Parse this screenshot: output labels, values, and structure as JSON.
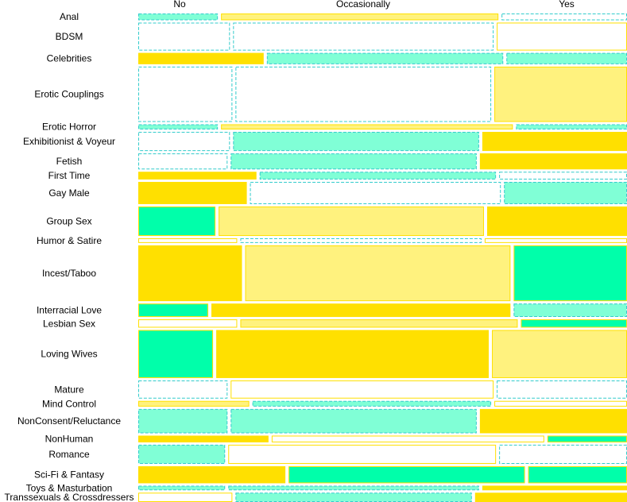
{
  "chart_data": {
    "type": "mosaic",
    "columns": [
      "No",
      "Occasionally",
      "Yes"
    ],
    "colors": {
      "yellow": "#ffe000",
      "light_yellow": "#fff27e",
      "green": "#00ffaa",
      "light_green": "#80ffd6",
      "white": "#ffffff",
      "yellow_border": "#ffe000",
      "green_border": "#33cccc"
    },
    "rows": [
      {
        "label": "Anal",
        "share": 1.3,
        "cells": [
          {
            "col": "No",
            "proportion": 0.165,
            "fill": "light_green",
            "border": "dashed"
          },
          {
            "col": "Occasionally",
            "proportion": 0.575,
            "fill": "light_yellow",
            "border": "solid"
          },
          {
            "col": "Yes",
            "proportion": 0.26,
            "fill": "white",
            "border": "dashed"
          }
        ]
      },
      {
        "label": "BDSM",
        "share": 5.4,
        "cells": [
          {
            "col": "No",
            "proportion": 0.19,
            "fill": "white",
            "border": "dashed"
          },
          {
            "col": "Occasionally",
            "proportion": 0.54,
            "fill": "white",
            "border": "dashed"
          },
          {
            "col": "Yes",
            "proportion": 0.27,
            "fill": "white",
            "border": "solid"
          }
        ]
      },
      {
        "label": "Celebrities",
        "share": 2.2,
        "cells": [
          {
            "col": "No",
            "proportion": 0.26,
            "fill": "yellow",
            "border": "solid"
          },
          {
            "col": "Occasionally",
            "proportion": 0.49,
            "fill": "light_green",
            "border": "dashed"
          },
          {
            "col": "Yes",
            "proportion": 0.25,
            "fill": "light_green",
            "border": "dashed"
          }
        ]
      },
      {
        "label": "Erotic Couplings",
        "share": 10.7,
        "cells": [
          {
            "col": "No",
            "proportion": 0.195,
            "fill": "white",
            "border": "dashed"
          },
          {
            "col": "Occasionally",
            "proportion": 0.53,
            "fill": "white",
            "border": "dashed"
          },
          {
            "col": "Yes",
            "proportion": 0.275,
            "fill": "light_yellow",
            "border": "solid"
          }
        ]
      },
      {
        "label": "Erotic Horror",
        "share": 1.0,
        "cells": [
          {
            "col": "No",
            "proportion": 0.165,
            "fill": "light_green",
            "border": "dashed"
          },
          {
            "col": "Occasionally",
            "proportion": 0.605,
            "fill": "light_yellow",
            "border": "solid"
          },
          {
            "col": "Yes",
            "proportion": 0.23,
            "fill": "light_green",
            "border": "dashed"
          }
        ]
      },
      {
        "label": "Exhibitionist & Voyeur",
        "share": 3.7,
        "cells": [
          {
            "col": "No",
            "proportion": 0.19,
            "fill": "white",
            "border": "dashed"
          },
          {
            "col": "Occasionally",
            "proportion": 0.51,
            "fill": "light_green",
            "border": "dashed"
          },
          {
            "col": "Yes",
            "proportion": 0.3,
            "fill": "yellow",
            "border": "solid"
          }
        ]
      },
      {
        "label": "Fetish",
        "share": 3.1,
        "cells": [
          {
            "col": "No",
            "proportion": 0.185,
            "fill": "white",
            "border": "dashed"
          },
          {
            "col": "Occasionally",
            "proportion": 0.51,
            "fill": "light_green",
            "border": "dashed"
          },
          {
            "col": "Yes",
            "proportion": 0.305,
            "fill": "yellow",
            "border": "solid"
          }
        ]
      },
      {
        "label": "First Time",
        "share": 1.5,
        "cells": [
          {
            "col": "No",
            "proportion": 0.245,
            "fill": "yellow",
            "border": "solid"
          },
          {
            "col": "Occasionally",
            "proportion": 0.49,
            "fill": "light_green",
            "border": "dashed"
          },
          {
            "col": "Yes",
            "proportion": 0.265,
            "fill": "white",
            "border": "dashed"
          }
        ]
      },
      {
        "label": "Gay Male",
        "share": 4.3,
        "cells": [
          {
            "col": "No",
            "proportion": 0.225,
            "fill": "yellow",
            "border": "solid"
          },
          {
            "col": "Occasionally",
            "proportion": 0.52,
            "fill": "white",
            "border": "dashed"
          },
          {
            "col": "Yes",
            "proportion": 0.255,
            "fill": "light_green",
            "border": "dashed"
          }
        ]
      },
      {
        "label": "Group Sex",
        "share": 5.7,
        "cells": [
          {
            "col": "No",
            "proportion": 0.16,
            "fill": "green",
            "border": "solid"
          },
          {
            "col": "Occasionally",
            "proportion": 0.55,
            "fill": "light_yellow",
            "border": "solid"
          },
          {
            "col": "Yes",
            "proportion": 0.29,
            "fill": "yellow",
            "border": "solid"
          }
        ]
      },
      {
        "label": "Humor & Satire",
        "share": 0.9,
        "cells": [
          {
            "col": "No",
            "proportion": 0.205,
            "fill": "white",
            "border": "solid"
          },
          {
            "col": "Occasionally",
            "proportion": 0.5,
            "fill": "white",
            "border": "dashed"
          },
          {
            "col": "Yes",
            "proportion": 0.295,
            "fill": "white",
            "border": "solid"
          }
        ]
      },
      {
        "label": "Incest/Taboo",
        "share": 10.8,
        "cells": [
          {
            "col": "No",
            "proportion": 0.215,
            "fill": "yellow",
            "border": "solid"
          },
          {
            "col": "Occasionally",
            "proportion": 0.55,
            "fill": "light_yellow",
            "border": "solid"
          },
          {
            "col": "Yes",
            "proportion": 0.235,
            "fill": "green",
            "border": "solid"
          }
        ]
      },
      {
        "label": "Interracial Love",
        "share": 2.6,
        "cells": [
          {
            "col": "No",
            "proportion": 0.145,
            "fill": "green",
            "border": "solid"
          },
          {
            "col": "Occasionally",
            "proportion": 0.62,
            "fill": "yellow",
            "border": "solid"
          },
          {
            "col": "Yes",
            "proportion": 0.235,
            "fill": "light_green",
            "border": "dashed"
          }
        ]
      },
      {
        "label": "Lesbian Sex",
        "share": 1.6,
        "cells": [
          {
            "col": "No",
            "proportion": 0.205,
            "fill": "white",
            "border": "solid"
          },
          {
            "col": "Occasionally",
            "proportion": 0.575,
            "fill": "light_yellow",
            "border": "solid"
          },
          {
            "col": "Yes",
            "proportion": 0.22,
            "fill": "green",
            "border": "solid"
          }
        ]
      },
      {
        "label": "Loving Wives",
        "share": 9.3,
        "cells": [
          {
            "col": "No",
            "proportion": 0.155,
            "fill": "green",
            "border": "solid"
          },
          {
            "col": "Occasionally",
            "proportion": 0.565,
            "fill": "yellow",
            "border": "solid"
          },
          {
            "col": "Yes",
            "proportion": 0.28,
            "fill": "light_yellow",
            "border": "solid"
          }
        ]
      },
      {
        "label": "Mature",
        "share": 3.5,
        "cells": [
          {
            "col": "No",
            "proportion": 0.185,
            "fill": "white",
            "border": "dashed"
          },
          {
            "col": "Occasionally",
            "proportion": 0.545,
            "fill": "white",
            "border": "solid"
          },
          {
            "col": "Yes",
            "proportion": 0.27,
            "fill": "white",
            "border": "dashed"
          }
        ]
      },
      {
        "label": "Mind Control",
        "share": 1.1,
        "cells": [
          {
            "col": "No",
            "proportion": 0.23,
            "fill": "light_yellow",
            "border": "solid"
          },
          {
            "col": "Occasionally",
            "proportion": 0.495,
            "fill": "light_green",
            "border": "dashed"
          },
          {
            "col": "Yes",
            "proportion": 0.275,
            "fill": "white",
            "border": "solid"
          }
        ]
      },
      {
        "label": "NonConsent/Reluctance",
        "share": 4.7,
        "cells": [
          {
            "col": "No",
            "proportion": 0.185,
            "fill": "light_green",
            "border": "dashed"
          },
          {
            "col": "Occasionally",
            "proportion": 0.51,
            "fill": "light_green",
            "border": "dashed"
          },
          {
            "col": "Yes",
            "proportion": 0.305,
            "fill": "yellow",
            "border": "solid"
          }
        ]
      },
      {
        "label": "NonHuman",
        "share": 1.3,
        "cells": [
          {
            "col": "No",
            "proportion": 0.27,
            "fill": "yellow",
            "border": "solid"
          },
          {
            "col": "Occasionally",
            "proportion": 0.565,
            "fill": "white",
            "border": "solid"
          },
          {
            "col": "Yes",
            "proportion": 0.165,
            "fill": "green",
            "border": "solid"
          }
        ]
      },
      {
        "label": "Romance",
        "share": 3.7,
        "cells": [
          {
            "col": "No",
            "proportion": 0.18,
            "fill": "light_green",
            "border": "dashed"
          },
          {
            "col": "Occasionally",
            "proportion": 0.555,
            "fill": "white",
            "border": "solid"
          },
          {
            "col": "Yes",
            "proportion": 0.265,
            "fill": "white",
            "border": "dashed"
          }
        ]
      },
      {
        "label": "Sci-Fi & Fantasy",
        "share": 3.3,
        "cells": [
          {
            "col": "No",
            "proportion": 0.305,
            "fill": "yellow",
            "border": "solid"
          },
          {
            "col": "Occasionally",
            "proportion": 0.49,
            "fill": "green",
            "border": "solid"
          },
          {
            "col": "Yes",
            "proportion": 0.205,
            "fill": "green",
            "border": "solid"
          }
        ]
      },
      {
        "label": "Toys & Masturbation",
        "share": 0.9,
        "cells": [
          {
            "col": "No",
            "proportion": 0.18,
            "fill": "light_green",
            "border": "dashed"
          },
          {
            "col": "Occasionally",
            "proportion": 0.52,
            "fill": "light_green",
            "border": "dashed"
          },
          {
            "col": "Yes",
            "proportion": 0.3,
            "fill": "yellow",
            "border": "solid"
          }
        ]
      },
      {
        "label": "Transsexuals & Crossdressers",
        "share": 1.8,
        "cells": [
          {
            "col": "No",
            "proportion": 0.195,
            "fill": "white",
            "border": "solid"
          },
          {
            "col": "Occasionally",
            "proportion": 0.49,
            "fill": "light_green",
            "border": "dashed"
          },
          {
            "col": "Yes",
            "proportion": 0.315,
            "fill": "yellow",
            "border": "solid"
          }
        ]
      }
    ]
  }
}
